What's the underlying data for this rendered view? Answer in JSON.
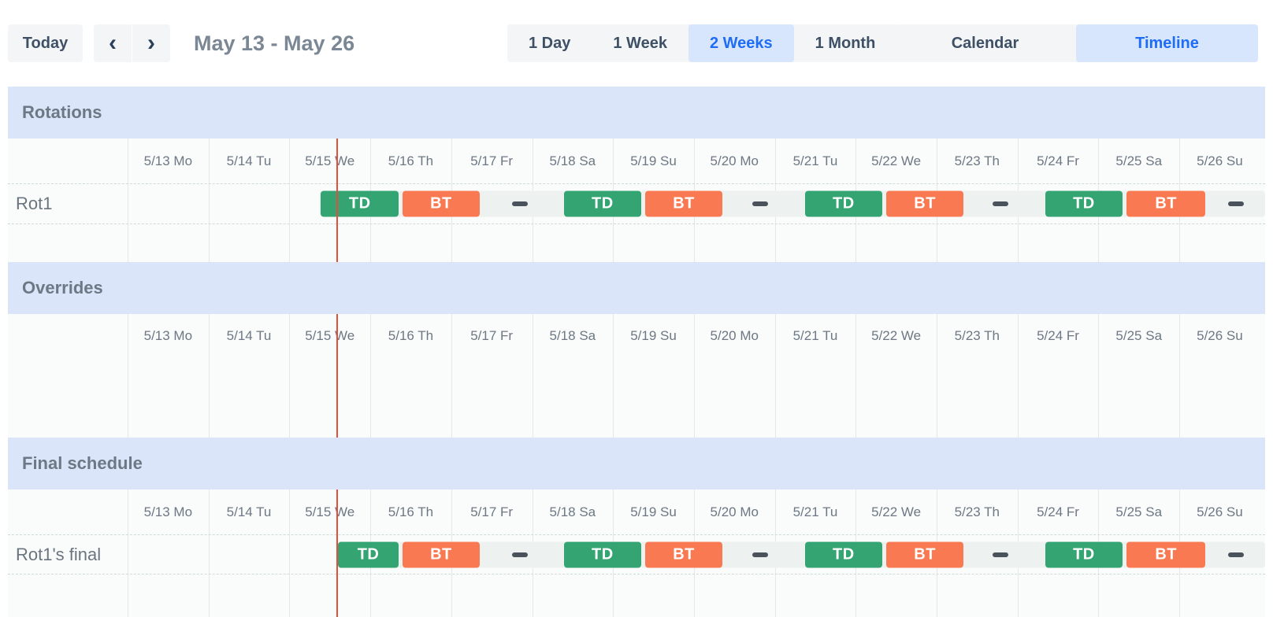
{
  "toolbar": {
    "today_label": "Today",
    "prev_glyph": "‹",
    "next_glyph": "›",
    "date_range_title": "May 13 - May 26",
    "view_options": [
      {
        "label": "1 Day",
        "selected": false
      },
      {
        "label": "1 Week",
        "selected": false
      },
      {
        "label": "2 Weeks",
        "selected": true
      },
      {
        "label": "1 Month",
        "selected": false
      }
    ],
    "mode_options": [
      {
        "label": "Calendar",
        "selected": false
      },
      {
        "label": "Timeline",
        "selected": true
      }
    ]
  },
  "colors": {
    "accent_blue": "#1f6cf5",
    "selected_segment_bg": "#d7e6fd",
    "section_band_blue": "#dbe5f9",
    "shift_green": "#34a473",
    "shift_orange": "#f97a52",
    "now_line_red": "#e2503d",
    "gap_dash_gray": "#4a525b"
  },
  "timeline": {
    "days": [
      "5/13 Mo",
      "5/14 Tu",
      "5/15 We",
      "5/16 Th",
      "5/17 Fr",
      "5/18 Sa",
      "5/19 Su",
      "5/20 Mo",
      "5/21 Tu",
      "5/22 We",
      "5/23 Th",
      "5/24 Fr",
      "5/25 Sa",
      "5/26 Su"
    ],
    "now_day_position": 2.59,
    "sections": [
      {
        "title": "Rotations",
        "rows": [
          {
            "label": "Rot1",
            "track_start": 2.38,
            "events": [
              {
                "type": "shift",
                "label": "TD",
                "color": "green",
                "start": 2.38,
                "end": 3.36
              },
              {
                "type": "shift",
                "label": "BT",
                "color": "orange",
                "start": 3.39,
                "end": 4.36
              },
              {
                "type": "dash",
                "center": 4.85
              },
              {
                "type": "shift",
                "label": "TD",
                "color": "green",
                "start": 5.38,
                "end": 6.36
              },
              {
                "type": "shift",
                "label": "BT",
                "color": "orange",
                "start": 6.39,
                "end": 7.36
              },
              {
                "type": "dash",
                "center": 7.82
              },
              {
                "type": "shift",
                "label": "TD",
                "color": "green",
                "start": 8.36,
                "end": 9.34
              },
              {
                "type": "shift",
                "label": "BT",
                "color": "orange",
                "start": 9.37,
                "end": 10.34
              },
              {
                "type": "dash",
                "center": 10.79
              },
              {
                "type": "shift",
                "label": "TD",
                "color": "green",
                "start": 11.33,
                "end": 12.31
              },
              {
                "type": "shift",
                "label": "BT",
                "color": "orange",
                "start": 12.34,
                "end": 13.33
              },
              {
                "type": "dash",
                "center": 13.7
              }
            ]
          }
        ]
      },
      {
        "title": "Overrides",
        "rows": []
      },
      {
        "title": "Final schedule",
        "rows": [
          {
            "label": "Rot1's final",
            "track_start": 2.59,
            "events": [
              {
                "type": "shift",
                "label": "TD",
                "color": "green",
                "start": 2.59,
                "end": 3.36
              },
              {
                "type": "shift",
                "label": "BT",
                "color": "orange",
                "start": 3.39,
                "end": 4.36
              },
              {
                "type": "dash",
                "center": 4.85
              },
              {
                "type": "shift",
                "label": "TD",
                "color": "green",
                "start": 5.38,
                "end": 6.36
              },
              {
                "type": "shift",
                "label": "BT",
                "color": "orange",
                "start": 6.39,
                "end": 7.36
              },
              {
                "type": "dash",
                "center": 7.82
              },
              {
                "type": "shift",
                "label": "TD",
                "color": "green",
                "start": 8.36,
                "end": 9.34
              },
              {
                "type": "shift",
                "label": "BT",
                "color": "orange",
                "start": 9.37,
                "end": 10.34
              },
              {
                "type": "dash",
                "center": 10.79
              },
              {
                "type": "shift",
                "label": "TD",
                "color": "green",
                "start": 11.33,
                "end": 12.31
              },
              {
                "type": "shift",
                "label": "BT",
                "color": "orange",
                "start": 12.34,
                "end": 13.33
              },
              {
                "type": "dash",
                "center": 13.7
              }
            ]
          }
        ]
      }
    ]
  }
}
